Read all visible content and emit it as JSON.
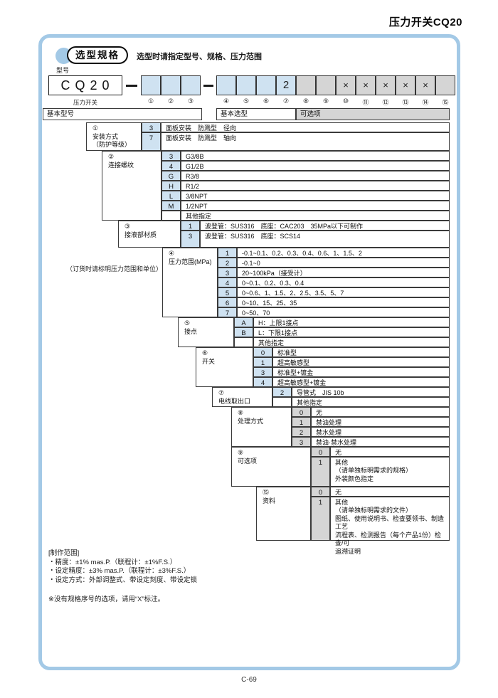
{
  "page": {
    "title": "压力开关CQ20",
    "page_number": "C-69"
  },
  "header": {
    "badge_label": "选型规格",
    "tagline": "选型时请指定型号、规格、压力范围",
    "model_label": "型号"
  },
  "model_row": {
    "base_code": "CQ20",
    "base_caption": "压力开关",
    "group_a_cells": [
      "",
      "",
      ""
    ],
    "group_b_cells": [
      "",
      "",
      "",
      "2",
      "",
      "",
      "×",
      "×",
      "×",
      "×",
      "×",
      ""
    ],
    "positions": [
      "①",
      "②",
      "③",
      "④",
      "⑤",
      "⑥",
      "⑦",
      "⑧",
      "⑨",
      "⑩",
      "⑪",
      "⑫",
      "⑬",
      "⑭",
      "⑮"
    ]
  },
  "table": {
    "headers": {
      "basic_model": "基本型号",
      "basic_selection": "基本选型",
      "options": "可选项"
    },
    "order_note": "（订货时请标明压力范围和单位）",
    "sections": [
      {
        "num": "①",
        "name": "安装方式\n（防护等级）",
        "rows": [
          {
            "code": "3",
            "desc": "面板安装　防溅型　径向"
          },
          {
            "code": "7",
            "desc": "面板安装　防溅型　轴向"
          }
        ]
      },
      {
        "num": "②",
        "name": "连接螺纹",
        "rows": [
          {
            "code": "3",
            "desc": "G3/8B"
          },
          {
            "code": "4",
            "desc": "G1/2B"
          },
          {
            "code": "G",
            "desc": "R3/8"
          },
          {
            "code": "H",
            "desc": "R1/2"
          },
          {
            "code": "L",
            "desc": "3/8NPT"
          },
          {
            "code": "M",
            "desc": "1/2NPT"
          },
          {
            "code": "",
            "desc": "其他指定"
          }
        ]
      },
      {
        "num": "③",
        "name": "接液部材质",
        "rows": [
          {
            "code": "1",
            "desc": "波登管：SUS316　底座：CAC203　35MPa以下可制作"
          },
          {
            "code": "3",
            "desc": "波登管：SUS316　底座：SCS14"
          }
        ]
      },
      {
        "num": "④",
        "name": "压力范围(MPa)",
        "rows": [
          {
            "code": "1",
            "desc": "-0.1~0.1、0.2、0.3、0.4、0.6、1、1.5、2"
          },
          {
            "code": "2",
            "desc": "-0.1~0"
          },
          {
            "code": "3",
            "desc": "20~100kPa（接受计）"
          },
          {
            "code": "4",
            "desc": "0~0.1、0.2、0.3、0.4"
          },
          {
            "code": "5",
            "desc": "0~0.6、1、1.5、2、2.5、3.5、5、7"
          },
          {
            "code": "6",
            "desc": "0~10、15、25、35"
          },
          {
            "code": "7",
            "desc": "0~50、70"
          }
        ]
      },
      {
        "num": "⑤",
        "name": "接点",
        "rows": [
          {
            "code": "A",
            "desc": "H：上限1接点"
          },
          {
            "code": "B",
            "desc": "L：下限1接点"
          },
          {
            "code": "",
            "desc": "其他指定"
          }
        ]
      },
      {
        "num": "⑥",
        "name": "开关",
        "rows": [
          {
            "code": "0",
            "desc": "标准型"
          },
          {
            "code": "1",
            "desc": "超高敏感型"
          },
          {
            "code": "3",
            "desc": "标准型+镀金"
          },
          {
            "code": "4",
            "desc": "超高敏感型+镀金"
          }
        ]
      },
      {
        "num": "⑦",
        "name": "电线取出口",
        "rows": [
          {
            "code": "2",
            "desc": "导管式　JIS 10b"
          },
          {
            "code": "",
            "desc": "其他指定"
          }
        ]
      },
      {
        "num": "⑧",
        "name": "处理方式",
        "rows": [
          {
            "code": "0",
            "desc": "无"
          },
          {
            "code": "1",
            "desc": "禁油处理"
          },
          {
            "code": "2",
            "desc": "禁水处理"
          },
          {
            "code": "3",
            "desc": "禁油·禁水处理"
          }
        ]
      },
      {
        "num": "⑨",
        "name": "可选项",
        "rows": [
          {
            "code": "0",
            "desc": "无"
          },
          {
            "code": "1",
            "desc": "其他\n（请单独标明需求的规格）\n外装颜色指定"
          }
        ]
      },
      {
        "num": "⑮",
        "name": "资料",
        "rows": [
          {
            "code": "0",
            "desc": "无"
          },
          {
            "code": "1",
            "desc": "其他\n（请单独标明需求的文件）\n图纸、使用说明书、检查要领书、制造工艺\n流程表、检测报告（每个产品1份）检查/可\n追溯证明"
          }
        ]
      }
    ]
  },
  "footer": {
    "production_range": "[制作范围]\n・精度：±1% mas.P.（联程计：±1%F.S.）\n・设定精度：±3% mas.P.（联程计：±3%F.S.）\n・设定方式：外部调整式、带设定刻度、带设定锁",
    "note": "※没有规格序号的选项，请用“X”标注。"
  },
  "colors": {
    "accent_blue": "#a3c9e6",
    "cell_blue": "#cfe2f1",
    "cell_gray": "#d5d5d5"
  }
}
